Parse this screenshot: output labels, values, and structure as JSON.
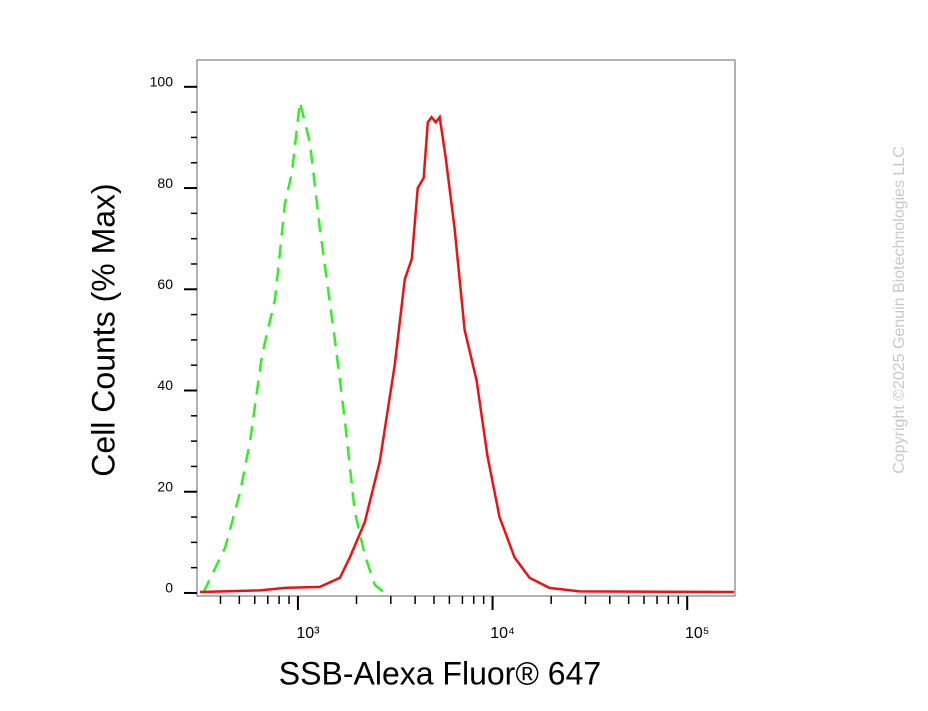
{
  "chart_data": {
    "type": "line",
    "x_label": "SSB-Alexa Fluor® 647",
    "y_label": "Cell Counts (% Max)",
    "watermark": "Copyright ©2025 Genuin Biotechnologies LLC",
    "xscale": "log",
    "xlim": [
      303,
      176000
    ],
    "ylim": [
      -0.6,
      105.3
    ],
    "xticks": [
      {
        "value": 1000,
        "label": "10³"
      },
      {
        "value": 10000,
        "label": "10⁴"
      },
      {
        "value": 100000,
        "label": "10⁵"
      }
    ],
    "xminorticks": [
      400,
      500,
      600,
      700,
      800,
      900,
      2000,
      3000,
      4000,
      5000,
      6000,
      7000,
      8000,
      9000,
      20000,
      30000,
      40000,
      50000,
      60000,
      70000,
      80000,
      90000
    ],
    "yticks": [
      0,
      20,
      40,
      60,
      80,
      100
    ],
    "yminorticks": [
      5,
      10,
      15,
      25,
      30,
      35,
      45,
      50,
      55,
      65,
      70,
      75,
      85,
      90,
      95
    ],
    "grid": false,
    "series": [
      {
        "color": "#33ee22",
        "dash": true,
        "x": [
          326,
          423,
          505,
          568,
          654,
          762,
          858,
          931,
          1024,
          1152,
          1297,
          1548,
          1742,
          1960,
          2206,
          2483,
          2793
        ],
        "values": [
          0,
          9,
          20,
          30,
          47,
          58,
          77,
          83,
          97,
          89,
          72,
          50,
          34,
          16,
          7.5,
          1.6,
          0
        ]
      },
      {
        "color": "#ee1111",
        "dash": false,
        "x": [
          314,
          638,
          858,
          1297,
          1642,
          1848,
          2206,
          2634,
          3143,
          3539,
          3845,
          4124,
          4427,
          4645,
          4864,
          5102,
          5348,
          5741,
          6385,
          7181,
          8275,
          9420,
          10860,
          12970,
          15480,
          19590,
          27930,
          174000
        ],
        "values": [
          0.2,
          0.5,
          1,
          1.2,
          3,
          7,
          14,
          26,
          45,
          62,
          66,
          80,
          82,
          93,
          94,
          93,
          94,
          86,
          72,
          52,
          42,
          27,
          15,
          7,
          3,
          1,
          0.3,
          0.2
        ]
      }
    ]
  }
}
